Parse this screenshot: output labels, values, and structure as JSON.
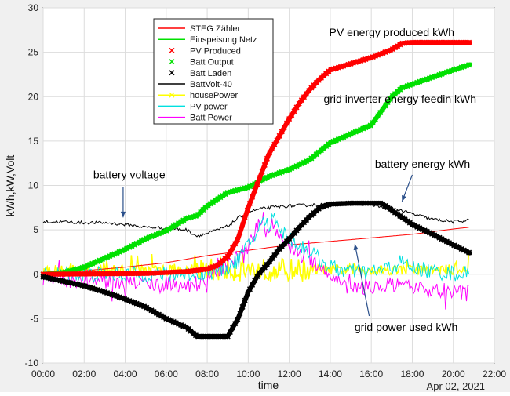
{
  "chart_data": {
    "type": "line",
    "xlabel": "time",
    "ylabel": "kWh,kW,Volt",
    "date_label": "Apr 02, 2021",
    "xlim": [
      0,
      22
    ],
    "ylim": [
      -10,
      30
    ],
    "xticks": [
      {
        "value": 0,
        "label": "00:00"
      },
      {
        "value": 2,
        "label": "02:00"
      },
      {
        "value": 4,
        "label": "04:00"
      },
      {
        "value": 6,
        "label": "06:00"
      },
      {
        "value": 8,
        "label": "08:00"
      },
      {
        "value": 10,
        "label": "10:00"
      },
      {
        "value": 12,
        "label": "12:00"
      },
      {
        "value": 14,
        "label": "14:00"
      },
      {
        "value": 16,
        "label": "16:00"
      },
      {
        "value": 18,
        "label": "18:00"
      },
      {
        "value": 20,
        "label": "20:00"
      },
      {
        "value": 22,
        "label": "22:00"
      }
    ],
    "yticks": [
      -10,
      -5,
      0,
      5,
      10,
      15,
      20,
      25,
      30
    ],
    "grid": true,
    "legend_position": "top-left",
    "series": [
      {
        "name": "STEG Zähler",
        "color": "#ff0000",
        "style": "line",
        "width": 1,
        "x": [
          0,
          2,
          4,
          6,
          7,
          8,
          9,
          10,
          11,
          12,
          13,
          14,
          15,
          16,
          17,
          18,
          19,
          20,
          20.8
        ],
        "y": [
          0,
          0.4,
          0.8,
          1.3,
          1.7,
          2.1,
          2.4,
          2.7,
          3.0,
          3.3,
          3.5,
          3.7,
          3.9,
          4.1,
          4.3,
          4.5,
          4.8,
          5.1,
          5.3
        ]
      },
      {
        "name": "Einspeisung Netz",
        "color": "#00e000",
        "style": "line",
        "width": 1,
        "x": [],
        "y": []
      },
      {
        "name": "PV Produced",
        "color": "#ff0000",
        "style": "x-thick",
        "x": [
          0,
          5,
          7,
          8,
          8.5,
          9,
          9.5,
          10,
          10.5,
          11,
          11.5,
          12,
          12.5,
          13,
          13.5,
          14,
          15,
          16,
          17,
          17.5,
          18,
          19,
          20,
          20.8
        ],
        "y": [
          0,
          0.1,
          0.3,
          0.6,
          1.0,
          2.0,
          4.0,
          7.5,
          10.5,
          13.5,
          15.5,
          17.5,
          19.3,
          20.8,
          22.0,
          23.0,
          23.7,
          24.4,
          25.3,
          26.0,
          26.1,
          26.1,
          26.1,
          26.1
        ]
      },
      {
        "name": "Batt Output",
        "color": "#00e000",
        "style": "x-thick",
        "x": [
          0,
          1,
          2,
          3,
          4,
          5,
          6,
          7,
          7.5,
          8,
          9,
          10,
          11,
          12,
          13,
          14,
          15,
          16,
          17,
          17.5,
          18,
          19,
          20,
          20.8
        ],
        "y": [
          0,
          0.2,
          0.8,
          1.8,
          2.8,
          4.0,
          4.9,
          6.3,
          6.6,
          7.7,
          9.2,
          9.8,
          11.0,
          11.8,
          12.9,
          14.8,
          15.8,
          16.8,
          20.0,
          21.0,
          21.4,
          22.2,
          23.0,
          23.6
        ]
      },
      {
        "name": "Batt Laden",
        "color": "#000000",
        "style": "x-thick",
        "x": [
          0,
          1,
          2,
          3,
          4,
          5,
          6,
          7,
          7.5,
          8,
          8.5,
          9,
          9.5,
          10,
          10.5,
          11,
          11.5,
          12,
          12.5,
          13,
          13.5,
          14,
          15,
          16,
          16.5,
          17,
          18,
          19,
          20,
          20.8
        ],
        "y": [
          -0.3,
          -0.8,
          -1.3,
          -2.0,
          -2.8,
          -3.7,
          -5.0,
          -6.0,
          -7.0,
          -7.0,
          -7.0,
          -7.0,
          -5.0,
          -2.0,
          0.0,
          1.3,
          2.8,
          4.0,
          5.3,
          6.5,
          7.5,
          7.9,
          8.0,
          8.0,
          8.0,
          7.2,
          5.6,
          4.5,
          3.3,
          2.4
        ]
      },
      {
        "name": "BattVolt-40",
        "color": "#000000",
        "style": "line",
        "width": 1,
        "x": [
          0,
          1,
          2,
          3,
          4,
          5,
          6,
          7,
          7.5,
          8,
          8.5,
          9,
          9.5,
          10,
          10.5,
          11,
          11.5,
          12,
          13,
          14,
          15,
          16,
          16.5,
          17,
          18,
          19,
          20,
          20.8
        ],
        "y": [
          5.9,
          5.9,
          5.8,
          5.8,
          5.6,
          5.3,
          5.2,
          5.0,
          4.3,
          4.6,
          5.0,
          5.4,
          6.3,
          7.0,
          7.3,
          7.5,
          7.6,
          7.7,
          7.8,
          7.9,
          8.0,
          7.9,
          7.5,
          7.5,
          6.8,
          6.2,
          5.9,
          6.1
        ]
      },
      {
        "name": "housePower",
        "color": "#ffff00",
        "style": "noisy",
        "base": 0.5,
        "amp": 0.6,
        "spike_amp": 2.0
      },
      {
        "name": "PV power",
        "color": "#00e0e0",
        "style": "line",
        "width": 1,
        "x": [
          0,
          7,
          8,
          8.5,
          9,
          9.5,
          10,
          10.3,
          10.5,
          10.8,
          11,
          11.3,
          11.6,
          12,
          12.5,
          13,
          13.5,
          14,
          15,
          16,
          17,
          17.5,
          18,
          19,
          20,
          20.8
        ],
        "y": [
          0,
          0,
          0.2,
          0.4,
          0.8,
          1.6,
          3.2,
          4.3,
          5.0,
          6.2,
          5.2,
          6.8,
          4.9,
          4.1,
          3.2,
          2.6,
          1.6,
          0.8,
          0.3,
          0.2,
          0.8,
          1.4,
          0.7,
          0.3,
          0.1,
          0
        ]
      },
      {
        "name": "Batt Power",
        "color": "#ff00ff",
        "style": "line",
        "width": 1,
        "x": [
          0,
          1,
          2,
          3,
          4,
          5,
          6,
          7,
          7.5,
          8,
          8.5,
          9,
          9.5,
          10,
          10.3,
          10.6,
          10.9,
          11.2,
          11.5,
          12,
          12.5,
          13,
          13.5,
          14,
          14.5,
          15,
          16,
          17,
          18,
          19,
          20,
          20.8
        ],
        "y": [
          -0.4,
          -0.6,
          -0.7,
          -0.8,
          -0.9,
          -1.0,
          -1.1,
          -1.2,
          -1.0,
          -0.6,
          0.4,
          0.9,
          1.9,
          3.0,
          4.6,
          6.0,
          4.5,
          5.8,
          4.2,
          3.2,
          2.6,
          1.8,
          0.9,
          0.0,
          -1.0,
          -1.5,
          -1.4,
          -1.3,
          -1.6,
          -1.8,
          -1.9,
          -2.1
        ]
      }
    ],
    "annotations": [
      {
        "text": "PV energy produced kWh",
        "x": 17.0,
        "y": 26.8,
        "anchor": "middle"
      },
      {
        "text": "grid inverter energy feedin kWh",
        "x": 17.4,
        "y": 19.3,
        "anchor": "middle"
      },
      {
        "text": "battery voltage",
        "x": 4.2,
        "y": 10.8,
        "anchor": "middle"
      },
      {
        "text": "battery energy kWh",
        "x": 18.5,
        "y": 12.0,
        "anchor": "middle"
      },
      {
        "text": "grid power used kWh",
        "x": 17.7,
        "y": -6.4,
        "anchor": "middle"
      }
    ],
    "arrows": [
      {
        "from": [
          3.9,
          9.8
        ],
        "to": [
          3.9,
          6.4
        ]
      },
      {
        "from": [
          18.0,
          11.2
        ],
        "to": [
          17.5,
          8.2
        ]
      },
      {
        "from": [
          15.9,
          -4.7
        ],
        "to": [
          15.2,
          3.4
        ]
      }
    ]
  }
}
